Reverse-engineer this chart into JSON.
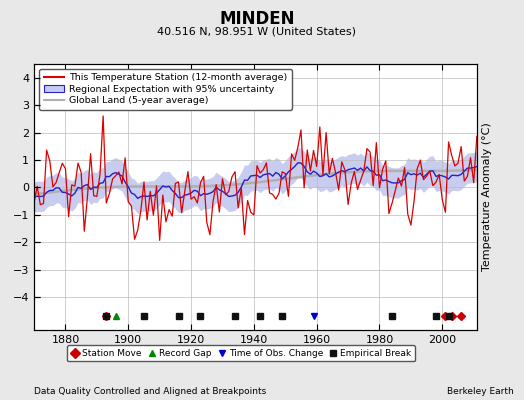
{
  "title": "MINDEN",
  "subtitle": "40.516 N, 98.951 W (United States)",
  "ylabel": "Temperature Anomaly (°C)",
  "xlabel_left": "Data Quality Controlled and Aligned at Breakpoints",
  "xlabel_right": "Berkeley Earth",
  "year_start": 1870,
  "year_end": 2011,
  "ylim": [
    -5.2,
    4.5
  ],
  "yticks": [
    -4,
    -3,
    -2,
    -1,
    0,
    1,
    2,
    3,
    4
  ],
  "xticks": [
    1880,
    1900,
    1920,
    1940,
    1960,
    1980,
    2000
  ],
  "bg_color": "#e8e8e8",
  "plot_bg_color": "#ffffff",
  "red_line_color": "#dd0000",
  "blue_line_color": "#2222cc",
  "blue_fill_color": "#c8ccee",
  "gray_line_color": "#b0b0b0",
  "station_move_color": "#cc0000",
  "record_gap_color": "#008800",
  "obs_change_color": "#0000cc",
  "emp_break_color": "#111111",
  "station_moves": [
    1893,
    2001,
    2003,
    2006
  ],
  "record_gaps": [
    1896
  ],
  "obs_changes": [
    1959
  ],
  "emp_breaks": [
    1893,
    1905,
    1916,
    1923,
    1934,
    1942,
    1949,
    1984,
    1998,
    2002
  ]
}
